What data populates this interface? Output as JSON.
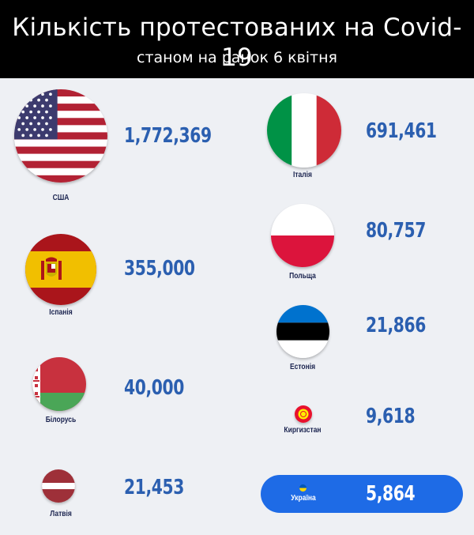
{
  "header": {
    "title": "Кількість протестованих на Covid-19",
    "subtitle": "станом на ранок 6 квітня"
  },
  "countries": {
    "usa": {
      "name": "США",
      "value": "1,772,369"
    },
    "spain": {
      "name": "Іспанія",
      "value": "355,000"
    },
    "belarus": {
      "name": "Білорусь",
      "value": "40,000"
    },
    "latvia": {
      "name": "Латвія",
      "value": "21,453"
    },
    "italy": {
      "name": "Італія",
      "value": "691,461"
    },
    "poland": {
      "name": "Польща",
      "value": "80,757"
    },
    "estonia": {
      "name": "Естонія",
      "value": "21,866"
    },
    "kyrgyzstan": {
      "name": "Киргизстан",
      "value": "9,618"
    },
    "ukraine": {
      "name": "Україна",
      "value": "5,864"
    }
  },
  "colors": {
    "value_text": "#2b5fb0",
    "highlight_pill": "#1e6be6",
    "header_bg": "#000000",
    "page_bg": "#eef0f4"
  }
}
